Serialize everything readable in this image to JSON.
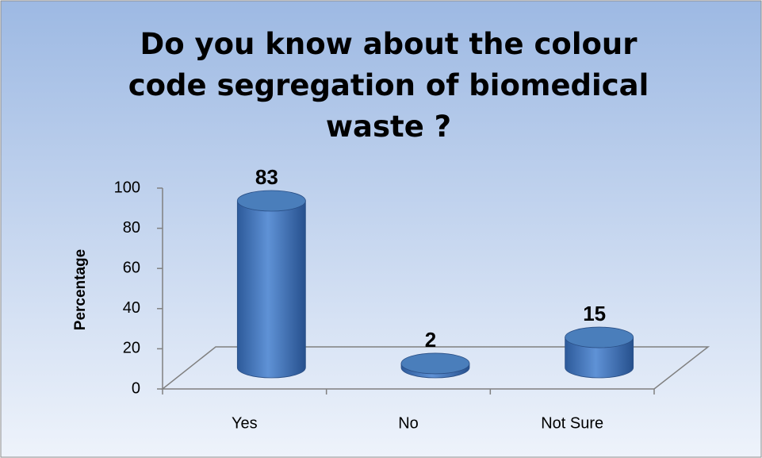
{
  "chart_data": {
    "type": "bar3d",
    "title": "Do you know about the colour code segregation of biomedical waste ?",
    "y_label": "Percentage",
    "categories": [
      "Yes",
      "No",
      "Not Sure"
    ],
    "values": [
      83,
      2,
      15
    ],
    "color": "#4a7ebb",
    "ylim": [
      0,
      100
    ],
    "yticks": [
      0,
      20,
      40,
      60,
      80,
      100
    ]
  }
}
